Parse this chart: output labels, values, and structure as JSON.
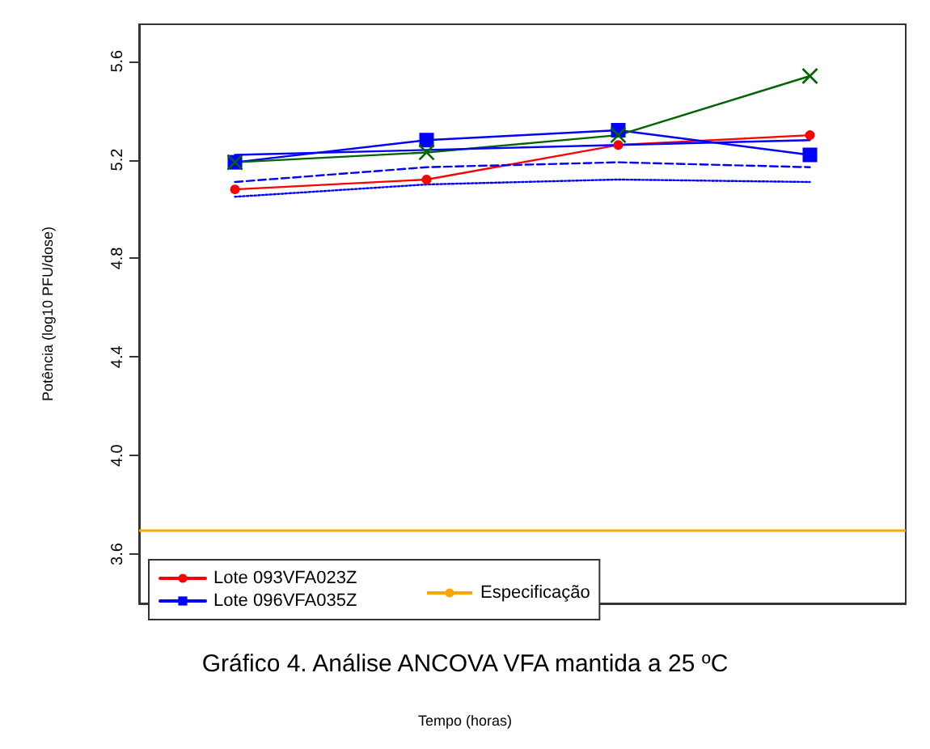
{
  "chart_data": {
    "type": "line",
    "title": "Gráfico 4. Análise ANCOVA VFA mantida a 25 ºC",
    "annotations": [
      "Tempo (horas)"
    ],
    "ylabel": "Potência (log10 PFU/dose)",
    "categories": [
      null,
      null,
      null,
      null
    ],
    "series": [
      {
        "name": "Lote 093VFA023Z",
        "color": "#ff0000",
        "marker": "circle",
        "values": [
          5.08,
          5.12,
          5.26,
          5.3
        ]
      },
      {
        "name": "Lote 096VFA035Z",
        "color": "#0000ff",
        "marker": "square",
        "values": [
          5.19,
          5.28,
          5.32,
          5.22
        ]
      },
      {
        "color": "#006400",
        "marker": "cross",
        "values": [
          5.19,
          5.23,
          5.3,
          5.54
        ]
      },
      {
        "color": "#0000ff",
        "marker": "none",
        "values": [
          5.22,
          5.24,
          5.26,
          5.28
        ]
      },
      {
        "color": "#0000ff",
        "marker": "none",
        "line_style": "dashed",
        "values": [
          5.11,
          5.17,
          5.19,
          5.17
        ]
      },
      {
        "color": "#0000ff",
        "marker": "none",
        "line_style": "dotted",
        "values": [
          5.05,
          5.1,
          5.12,
          5.11
        ]
      }
    ],
    "ylim": [
      3.4,
      5.75
    ],
    "yticks": [
      {
        "value": 3.6,
        "label": "3.6"
      },
      {
        "value": 4,
        "label": "4.0"
      },
      {
        "value": 4.4,
        "label": "4.4"
      },
      {
        "value": 4.8,
        "label": "4.8"
      },
      {
        "value": 5.2,
        "label": "5.2"
      },
      {
        "value": 5.6,
        "label": "5.6"
      }
    ],
    "ref_lines": [
      {
        "axis": "y",
        "value": 3.7,
        "label": "Especificação",
        "color": "#ffa500"
      }
    ],
    "legend": "bottom left",
    "grid": false
  }
}
